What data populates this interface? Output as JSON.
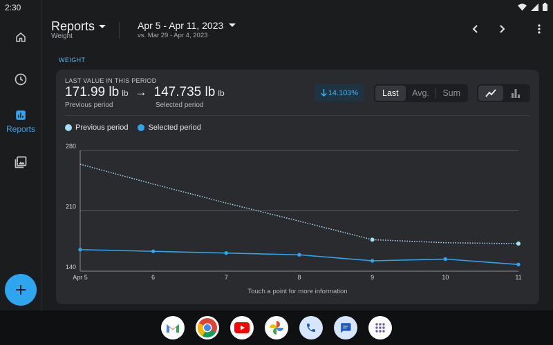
{
  "status": {
    "time": "2:30"
  },
  "rail": {
    "items": [
      {
        "name": "home",
        "label": ""
      },
      {
        "name": "history",
        "label": ""
      },
      {
        "name": "reports",
        "label": "Reports"
      },
      {
        "name": "gallery",
        "label": ""
      }
    ]
  },
  "header": {
    "title": "Reports",
    "subtitle": "Weight",
    "period": "Apr 5 - Apr 11, 2023",
    "comparison": "vs. Mar 29 - Apr 4, 2023"
  },
  "section_label": "WEIGHT",
  "card": {
    "caption": "LAST VALUE IN THIS PERIOD",
    "previous_value": "171.99 lb",
    "previous_unit": "lb",
    "selected_value": "147.735 lb",
    "selected_unit": "lb",
    "arrow": "→",
    "previous_label": "Previous period",
    "selected_label": "Selected period",
    "change": "14.103%",
    "change_direction": "down",
    "aggregations": [
      "Last",
      "Avg.",
      "Sum"
    ],
    "active_aggregation": "Last",
    "chart_modes": [
      "line-chart-icon",
      "bar-chart-icon"
    ],
    "active_chart_mode": "line-chart-icon",
    "hint": "Touch a point for more information"
  },
  "chart_data": {
    "type": "line",
    "x": [
      "Apr 5",
      "6",
      "7",
      "8",
      "9",
      "10",
      "11"
    ],
    "ylim": [
      140,
      280
    ],
    "yticks": [
      140,
      210,
      280
    ],
    "series": [
      {
        "name": "Previous period",
        "style": "dotted",
        "color": "#a8dcf7",
        "values": [
          null,
          null,
          null,
          null,
          176.5,
          null,
          171.99
        ],
        "line_only": [
          264,
          241,
          219,
          198,
          176.5,
          173,
          171.99
        ],
        "points": [
          4,
          6
        ]
      },
      {
        "name": "Selected period",
        "style": "solid",
        "color": "#2ea6ef",
        "values": [
          165,
          163,
          161,
          159,
          152,
          154,
          147.735
        ]
      }
    ],
    "legend": "top-left",
    "grid": true
  },
  "dock": {
    "apps": [
      "gmail-icon",
      "chrome-icon",
      "youtube-icon",
      "photos-icon",
      "phone-icon",
      "messages-icon",
      "app-drawer-icon"
    ]
  }
}
